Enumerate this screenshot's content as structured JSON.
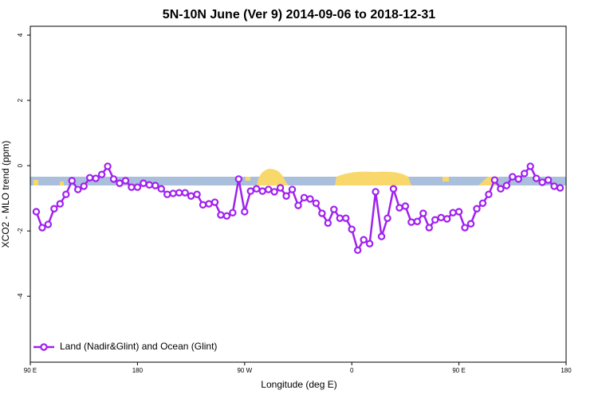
{
  "chart_data": {
    "type": "line",
    "title": "5N-10N June (Ver 9)   2014-09-06 to 2018-12-31",
    "xlabel": "Longitude (deg E)",
    "ylabel": "XCO2 - MLO trend (ppm)",
    "x": [
      95,
      100,
      105,
      110,
      115,
      120,
      125,
      130,
      135,
      140,
      145,
      150,
      155,
      160,
      165,
      170,
      175,
      180,
      185,
      190,
      195,
      200,
      205,
      210,
      215,
      220,
      225,
      230,
      235,
      240,
      245,
      250,
      255,
      260,
      265,
      270,
      275,
      280,
      285,
      290,
      295,
      300,
      305,
      310,
      315,
      320,
      325,
      330,
      335,
      340,
      345,
      350,
      355,
      360,
      365,
      370,
      375,
      380,
      385,
      390,
      395,
      400,
      405,
      410,
      415,
      420,
      425,
      430,
      435,
      440,
      445,
      450,
      455,
      460,
      465,
      470,
      475,
      480,
      485,
      490,
      495,
      500,
      505,
      510,
      515,
      520,
      525,
      530,
      535
    ],
    "series": [
      {
        "name": "Land (Nadir&Glint) and Ocean (Glint)",
        "color": "#a020f0",
        "values": [
          -1.41,
          -1.9,
          -1.8,
          -1.32,
          -1.17,
          -0.88,
          -0.46,
          -0.73,
          -0.63,
          -0.37,
          -0.39,
          -0.27,
          -0.02,
          -0.41,
          -0.54,
          -0.46,
          -0.66,
          -0.66,
          -0.54,
          -0.59,
          -0.61,
          -0.71,
          -0.88,
          -0.85,
          -0.83,
          -0.83,
          -0.93,
          -0.88,
          -1.2,
          -1.17,
          -1.12,
          -1.51,
          -1.54,
          -1.44,
          -0.41,
          -1.41,
          -0.78,
          -0.71,
          -0.78,
          -0.73,
          -0.8,
          -0.68,
          -0.93,
          -0.73,
          -1.22,
          -0.98,
          -1.02,
          -1.15,
          -1.46,
          -1.76,
          -1.34,
          -1.61,
          -1.61,
          -1.95,
          -2.59,
          -2.27,
          -2.39,
          -0.8,
          -2.17,
          -1.61,
          -0.71,
          -1.29,
          -1.24,
          -1.73,
          -1.71,
          -1.46,
          -1.9,
          -1.66,
          -1.59,
          -1.63,
          -1.44,
          -1.41,
          -1.9,
          -1.78,
          -1.32,
          -1.15,
          -0.88,
          -0.44,
          -0.71,
          -0.61,
          -0.34,
          -0.41,
          -0.24,
          -0.02,
          -0.39,
          -0.51,
          -0.44,
          -0.63,
          -0.68
        ]
      }
    ],
    "xlim": [
      90,
      540
    ],
    "xticks": [
      {
        "value": 90,
        "label": "90 E"
      },
      180,
      {
        "value": 270,
        "label": "90 W"
      },
      {
        "value": 360,
        "label": "0"
      },
      {
        "value": 450,
        "label": "90 E"
      },
      {
        "value": 540,
        "label": "180"
      }
    ],
    "ylim": [
      -6.02,
      4.27
    ],
    "yticks": [
      4,
      2,
      0,
      -2,
      -4
    ],
    "legend": "bottom-left"
  }
}
